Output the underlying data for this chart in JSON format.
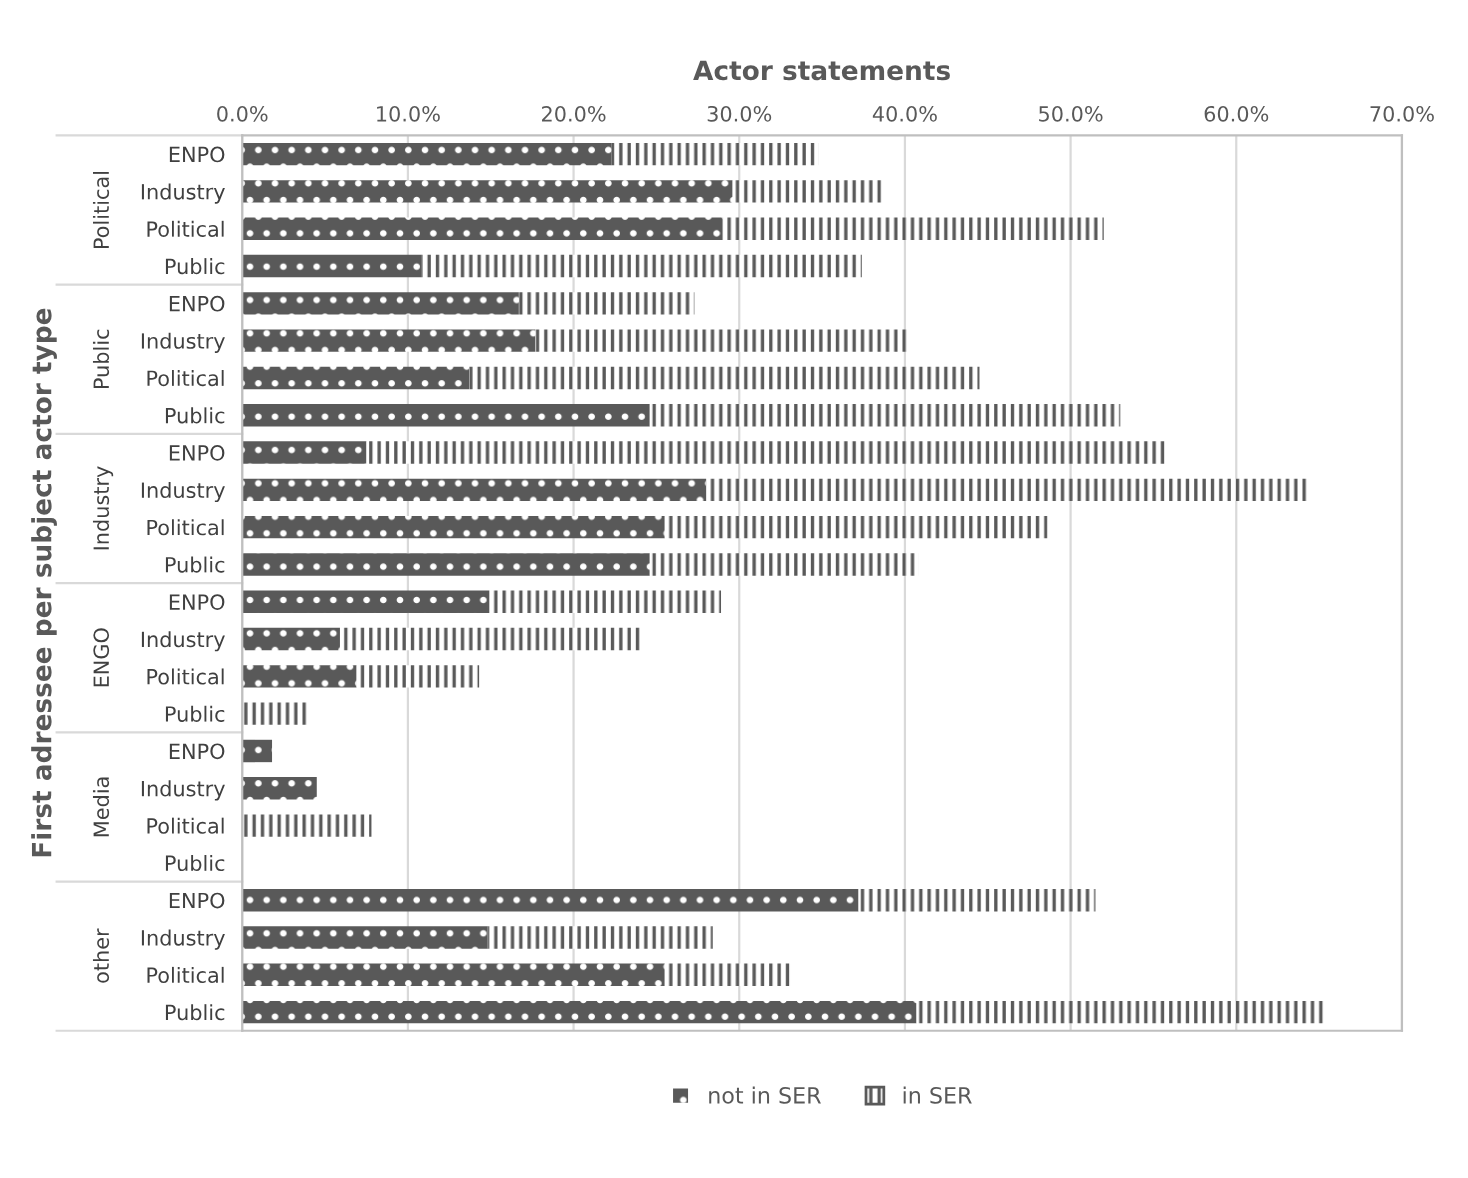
{
  "chart_data": {
    "type": "bar",
    "orientation": "horizontal",
    "stacked": true,
    "title": "Actor statements",
    "ylabel": "First adressee per subject actor type",
    "categories": [
      "ENPO",
      "Industry",
      "Political",
      "Public",
      "ENPO",
      "Industry",
      "Political",
      "Public",
      "ENPO",
      "Industry",
      "Political",
      "Public",
      "ENPO",
      "Industry",
      "Political",
      "Public",
      "ENPO",
      "Industry",
      "Political",
      "Public",
      "ENPO",
      "Industry",
      "Political",
      "Public"
    ],
    "annotations": [
      "Political",
      "Public",
      "Industry",
      "ENGO",
      "Media",
      "other"
    ],
    "series": [
      {
        "name": "not in SER",
        "color": "#595959",
        "values": [
          22.3,
          29.6,
          29.0,
          10.8,
          16.7,
          17.7,
          13.7,
          24.6,
          7.5,
          28.0,
          25.5,
          24.6,
          14.9,
          5.9,
          6.9,
          0,
          1.8,
          4.5,
          0,
          0,
          37.2,
          14.8,
          25.5,
          40.7
        ]
      },
      {
        "name": "in SER",
        "color": "#595959",
        "values": [
          12.5,
          9.0,
          23.0,
          26.6,
          10.6,
          22.5,
          30.8,
          28.4,
          48.2,
          36.3,
          23.1,
          16.2,
          14.0,
          18.2,
          7.4,
          4.0,
          0,
          0,
          7.8,
          0,
          14.3,
          13.6,
          7.8,
          24.6
        ]
      }
    ],
    "xlim": [
      0,
      70
    ],
    "xticks": [
      {
        "value": 0,
        "label": "0.0%"
      },
      {
        "value": 10,
        "label": "10.0%"
      },
      {
        "value": 20,
        "label": "20.0%"
      },
      {
        "value": 30,
        "label": "30.0%"
      },
      {
        "value": 40,
        "label": "40.0%"
      },
      {
        "value": 50,
        "label": "50.0%"
      },
      {
        "value": 60,
        "label": "60.0%"
      },
      {
        "value": 70,
        "label": "70.0%"
      }
    ],
    "grid": "x",
    "legend": "bottom"
  }
}
